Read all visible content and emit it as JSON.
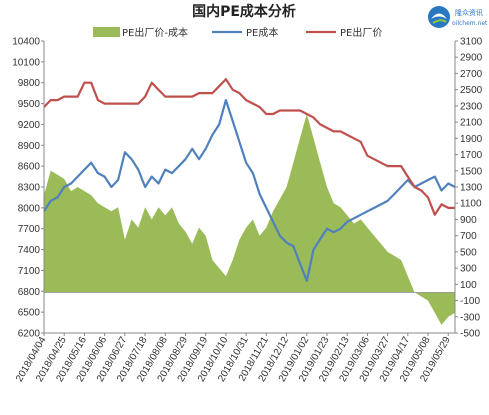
{
  "logo": {
    "name_cn": "隆众资讯",
    "name_en": "oilchem.net",
    "color": "#2a78c2"
  },
  "chart_data": {
    "type": "line",
    "title": "国内PE成本分析",
    "left_axis": {
      "ylim": [
        6200,
        10400
      ],
      "ticks": [
        6200,
        6500,
        6800,
        7100,
        7400,
        7700,
        8000,
        8300,
        8600,
        8900,
        9200,
        9500,
        9800,
        10100,
        10400
      ]
    },
    "right_axis": {
      "ylim": [
        -500,
        3100
      ],
      "ticks": [
        -500,
        -300,
        -100,
        100,
        300,
        500,
        700,
        900,
        1100,
        1300,
        1500,
        1700,
        1900,
        2100,
        2300,
        2500,
        2700,
        2900,
        3100
      ]
    },
    "x_dates": [
      "2018/04/04",
      "2018/04/25",
      "2018/05/16",
      "2018/06/06",
      "2018/06/27",
      "2018/07/18",
      "2018/08/08",
      "2018/08/29",
      "2018/09/19",
      "2018/10/10",
      "2018/10/31",
      "2018/11/21",
      "2018/12/12",
      "2019/01/02",
      "2019/01/23",
      "2019/02/13",
      "2019/03/06",
      "2019/03/27",
      "2019/04/17",
      "2019/05/08",
      "2019/05/29"
    ],
    "x_range": [
      "2018/04/04",
      "2019/06/05"
    ],
    "colors": {
      "spread": "#9bbb59",
      "cost": "#4f81bd",
      "price": "#c0504d"
    },
    "series": [
      {
        "name": "PE出厂价-成本",
        "axis": "right",
        "type": "area",
        "color": "#9bbb59",
        "points": [
          [
            "2018/04/04",
            1200
          ],
          [
            "2018/04/11",
            1500
          ],
          [
            "2018/04/18",
            1450
          ],
          [
            "2018/04/25",
            1400
          ],
          [
            "2018/05/02",
            1250
          ],
          [
            "2018/05/09",
            1300
          ],
          [
            "2018/05/16",
            1250
          ],
          [
            "2018/05/23",
            1200
          ],
          [
            "2018/05/30",
            1100
          ],
          [
            "2018/06/06",
            1050
          ],
          [
            "2018/06/13",
            1000
          ],
          [
            "2018/06/20",
            1050
          ],
          [
            "2018/06/27",
            650
          ],
          [
            "2018/07/04",
            900
          ],
          [
            "2018/07/11",
            800
          ],
          [
            "2018/07/18",
            1050
          ],
          [
            "2018/07/25",
            900
          ],
          [
            "2018/08/01",
            1050
          ],
          [
            "2018/08/08",
            950
          ],
          [
            "2018/08/15",
            1050
          ],
          [
            "2018/08/22",
            850
          ],
          [
            "2018/08/29",
            750
          ],
          [
            "2018/09/05",
            600
          ],
          [
            "2018/09/12",
            800
          ],
          [
            "2018/09/19",
            700
          ],
          [
            "2018/09/26",
            400
          ],
          [
            "2018/10/03",
            300
          ],
          [
            "2018/10/10",
            200
          ],
          [
            "2018/10/17",
            400
          ],
          [
            "2018/10/24",
            650
          ],
          [
            "2018/10/31",
            800
          ],
          [
            "2018/11/07",
            900
          ],
          [
            "2018/11/14",
            700
          ],
          [
            "2018/11/21",
            800
          ],
          [
            "2018/11/28",
            1000
          ],
          [
            "2018/12/05",
            1150
          ],
          [
            "2018/12/12",
            1300
          ],
          [
            "2018/12/19",
            1600
          ],
          [
            "2018/12/26",
            1900
          ],
          [
            "2019/01/02",
            2200
          ],
          [
            "2019/01/09",
            1900
          ],
          [
            "2019/01/16",
            1600
          ],
          [
            "2019/01/23",
            1300
          ],
          [
            "2019/01/30",
            1100
          ],
          [
            "2019/02/06",
            1050
          ],
          [
            "2019/02/13",
            950
          ],
          [
            "2019/02/20",
            850
          ],
          [
            "2019/02/27",
            900
          ],
          [
            "2019/03/06",
            800
          ],
          [
            "2019/03/13",
            700
          ],
          [
            "2019/03/20",
            600
          ],
          [
            "2019/03/27",
            500
          ],
          [
            "2019/04/03",
            450
          ],
          [
            "2019/04/10",
            400
          ],
          [
            "2019/04/17",
            200
          ],
          [
            "2019/04/24",
            0
          ],
          [
            "2019/05/01",
            -50
          ],
          [
            "2019/05/08",
            -100
          ],
          [
            "2019/05/15",
            -250
          ],
          [
            "2019/05/22",
            -400
          ],
          [
            "2019/05/29",
            -300
          ],
          [
            "2019/06/05",
            -250
          ]
        ]
      },
      {
        "name": "PE成本",
        "axis": "left",
        "type": "line",
        "color": "#4f81bd",
        "points": [
          [
            "2018/04/04",
            7950
          ],
          [
            "2018/04/11",
            8100
          ],
          [
            "2018/04/18",
            8150
          ],
          [
            "2018/04/25",
            8300
          ],
          [
            "2018/05/02",
            8350
          ],
          [
            "2018/05/09",
            8450
          ],
          [
            "2018/05/16",
            8550
          ],
          [
            "2018/05/23",
            8650
          ],
          [
            "2018/05/30",
            8500
          ],
          [
            "2018/06/06",
            8450
          ],
          [
            "2018/06/13",
            8300
          ],
          [
            "2018/06/20",
            8400
          ],
          [
            "2018/06/27",
            8800
          ],
          [
            "2018/07/04",
            8700
          ],
          [
            "2018/07/11",
            8550
          ],
          [
            "2018/07/18",
            8300
          ],
          [
            "2018/07/25",
            8450
          ],
          [
            "2018/08/01",
            8350
          ],
          [
            "2018/08/08",
            8550
          ],
          [
            "2018/08/15",
            8500
          ],
          [
            "2018/08/22",
            8600
          ],
          [
            "2018/08/29",
            8700
          ],
          [
            "2018/09/05",
            8850
          ],
          [
            "2018/09/12",
            8700
          ],
          [
            "2018/09/19",
            8850
          ],
          [
            "2018/09/26",
            9050
          ],
          [
            "2018/10/03",
            9200
          ],
          [
            "2018/10/10",
            9550
          ],
          [
            "2018/10/17",
            9250
          ],
          [
            "2018/10/24",
            8950
          ],
          [
            "2018/10/31",
            8650
          ],
          [
            "2018/11/07",
            8500
          ],
          [
            "2018/11/14",
            8200
          ],
          [
            "2018/11/21",
            8000
          ],
          [
            "2018/11/28",
            7800
          ],
          [
            "2018/12/05",
            7600
          ],
          [
            "2018/12/12",
            7500
          ],
          [
            "2018/12/19",
            7450
          ],
          [
            "2018/12/26",
            7200
          ],
          [
            "2019/01/02",
            6950
          ],
          [
            "2019/01/09",
            7400
          ],
          [
            "2019/01/16",
            7550
          ],
          [
            "2019/01/23",
            7700
          ],
          [
            "2019/01/30",
            7650
          ],
          [
            "2019/02/06",
            7700
          ],
          [
            "2019/02/13",
            7800
          ],
          [
            "2019/02/20",
            7850
          ],
          [
            "2019/02/27",
            7900
          ],
          [
            "2019/03/06",
            7950
          ],
          [
            "2019/03/13",
            8000
          ],
          [
            "2019/03/20",
            8050
          ],
          [
            "2019/03/27",
            8100
          ],
          [
            "2019/04/03",
            8200
          ],
          [
            "2019/04/10",
            8300
          ],
          [
            "2019/04/17",
            8400
          ],
          [
            "2019/04/24",
            8300
          ],
          [
            "2019/05/01",
            8350
          ],
          [
            "2019/05/08",
            8400
          ],
          [
            "2019/05/15",
            8450
          ],
          [
            "2019/05/22",
            8250
          ],
          [
            "2019/05/29",
            8350
          ],
          [
            "2019/06/05",
            8300
          ]
        ]
      },
      {
        "name": "PE出厂价",
        "axis": "left",
        "type": "line",
        "color": "#c0504d",
        "points": [
          [
            "2018/04/04",
            9450
          ],
          [
            "2018/04/11",
            9550
          ],
          [
            "2018/04/18",
            9550
          ],
          [
            "2018/04/25",
            9600
          ],
          [
            "2018/05/02",
            9600
          ],
          [
            "2018/05/09",
            9600
          ],
          [
            "2018/05/16",
            9800
          ],
          [
            "2018/05/23",
            9800
          ],
          [
            "2018/05/30",
            9550
          ],
          [
            "2018/06/06",
            9500
          ],
          [
            "2018/06/13",
            9500
          ],
          [
            "2018/06/20",
            9500
          ],
          [
            "2018/06/27",
            9500
          ],
          [
            "2018/07/04",
            9500
          ],
          [
            "2018/07/11",
            9500
          ],
          [
            "2018/07/18",
            9600
          ],
          [
            "2018/07/25",
            9800
          ],
          [
            "2018/08/01",
            9700
          ],
          [
            "2018/08/08",
            9600
          ],
          [
            "2018/08/15",
            9600
          ],
          [
            "2018/08/22",
            9600
          ],
          [
            "2018/08/29",
            9600
          ],
          [
            "2018/09/05",
            9600
          ],
          [
            "2018/09/12",
            9650
          ],
          [
            "2018/09/19",
            9650
          ],
          [
            "2018/09/26",
            9650
          ],
          [
            "2018/10/03",
            9750
          ],
          [
            "2018/10/10",
            9850
          ],
          [
            "2018/10/17",
            9700
          ],
          [
            "2018/10/24",
            9650
          ],
          [
            "2018/10/31",
            9550
          ],
          [
            "2018/11/07",
            9500
          ],
          [
            "2018/11/14",
            9450
          ],
          [
            "2018/11/21",
            9350
          ],
          [
            "2018/11/28",
            9350
          ],
          [
            "2018/12/05",
            9400
          ],
          [
            "2018/12/12",
            9400
          ],
          [
            "2018/12/19",
            9400
          ],
          [
            "2018/12/26",
            9400
          ],
          [
            "2019/01/02",
            9350
          ],
          [
            "2019/01/09",
            9300
          ],
          [
            "2019/01/16",
            9200
          ],
          [
            "2019/01/23",
            9150
          ],
          [
            "2019/01/30",
            9100
          ],
          [
            "2019/02/06",
            9100
          ],
          [
            "2019/02/13",
            9050
          ],
          [
            "2019/02/20",
            9000
          ],
          [
            "2019/02/27",
            8950
          ],
          [
            "2019/03/06",
            8750
          ],
          [
            "2019/03/13",
            8700
          ],
          [
            "2019/03/20",
            8650
          ],
          [
            "2019/03/27",
            8600
          ],
          [
            "2019/04/03",
            8600
          ],
          [
            "2019/04/10",
            8600
          ],
          [
            "2019/04/17",
            8450
          ],
          [
            "2019/04/24",
            8300
          ],
          [
            "2019/05/01",
            8250
          ],
          [
            "2019/05/08",
            8150
          ],
          [
            "2019/05/15",
            7900
          ],
          [
            "2019/05/22",
            8050
          ],
          [
            "2019/05/29",
            8000
          ],
          [
            "2019/06/05",
            8000
          ]
        ]
      }
    ],
    "legend": {
      "placement": "top",
      "items": [
        "PE出厂价-成本",
        "PE成本",
        "PE出厂价"
      ]
    },
    "grid": false
  }
}
